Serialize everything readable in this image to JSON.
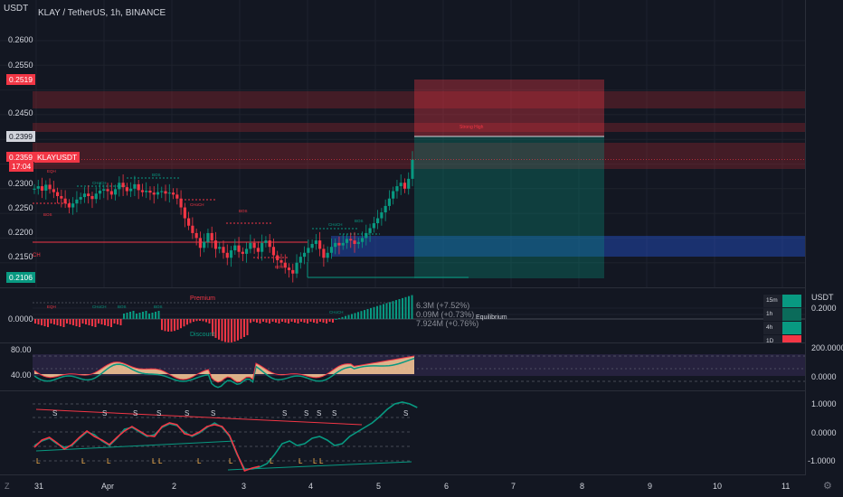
{
  "header": {
    "currency": "USDT",
    "symbol_title": "KLAY / TetherUS, 1h, BINANCE"
  },
  "price_axis": {
    "ticks": [
      "0.2600",
      "0.2550",
      "0.2450",
      "0.2300",
      "0.2250",
      "0.2200",
      "0.2150"
    ],
    "label_red_top": "0.2519",
    "label_white": "0.2399",
    "label_current": "0.2359",
    "label_countdown": "17:04",
    "label_symbol": "KLAYUSDT",
    "label_green": "0.2106"
  },
  "main_annotations": {
    "bos_labels": [
      "BOS",
      "BOS",
      "BOS",
      "BOS",
      "BOS",
      "BOS"
    ],
    "choch_labels": [
      "CHoCH",
      "CHoCH",
      "CHoCH"
    ],
    "eqh": "EQH",
    "strong_high": "Strong High",
    "left_edge": "CH"
  },
  "pane2": {
    "axis_label": "0.0000",
    "premium": "Premium",
    "discount": "Discount",
    "equilibrium": "Equilibrium",
    "eq_stats": [
      "6.3M (+7.52%)",
      "0.09M (+0.73%)",
      "7.924M (+0.76%)"
    ],
    "right_currency": "USDT",
    "right_value": "0.2000",
    "timeframes": [
      "15m",
      "1h",
      "4h",
      "1D"
    ],
    "small_labels": [
      "EQH",
      "CHoCH",
      "BOS",
      "BOS",
      "CHoCH"
    ]
  },
  "pane3": {
    "left_ticks": [
      "80.00",
      "40.00"
    ],
    "right_ticks": [
      "200.0000",
      "0.0000"
    ]
  },
  "pane4": {
    "right_ticks": [
      "1.0000",
      "0.0000",
      "-1.0000"
    ],
    "s_marks": [
      "S",
      "S",
      "S",
      "S",
      "S",
      "S",
      "S",
      "S",
      "S",
      "S",
      "S"
    ],
    "l_marks": [
      "L",
      "L",
      "L",
      "L",
      "L",
      "L",
      "L",
      "L",
      "L",
      "L",
      "L"
    ]
  },
  "time_axis": {
    "labels": [
      "31",
      "Apr",
      "2",
      "3",
      "4",
      "5",
      "6",
      "7",
      "8",
      "9",
      "10",
      "11"
    ]
  },
  "chart_data": {
    "type": "candlestick",
    "title": "KLAY / TetherUS, 1h, BINANCE",
    "ylabel": "USDT",
    "ylim": [
      0.2106,
      0.262
    ],
    "x_labels": [
      "31",
      "Apr",
      "2",
      "3",
      "4",
      "5"
    ],
    "close": [
      0.23,
      0.2305,
      0.2296,
      0.2308,
      0.2299,
      0.2293,
      0.2285,
      0.228,
      0.227,
      0.2262,
      0.227,
      0.2278,
      0.2283,
      0.229,
      0.2285,
      0.2279,
      0.229,
      0.2296,
      0.2299,
      0.2295,
      0.2288,
      0.2299,
      0.2312,
      0.2303,
      0.2295,
      0.23,
      0.2309,
      0.2297,
      0.2293,
      0.2296,
      0.2292,
      0.2288,
      0.2293,
      0.2295,
      0.229,
      0.2292,
      0.2288,
      0.228,
      0.2262,
      0.224,
      0.2225,
      0.221,
      0.22,
      0.218,
      0.2192,
      0.221,
      0.2195,
      0.2178,
      0.2182,
      0.217,
      0.216,
      0.2175,
      0.2185,
      0.2172,
      0.2168,
      0.2178,
      0.219,
      0.218,
      0.2172,
      0.219,
      0.2195,
      0.2182,
      0.2165,
      0.2155,
      0.215,
      0.214,
      0.2135,
      0.2128,
      0.215,
      0.2162,
      0.217,
      0.218,
      0.2188,
      0.2195,
      0.2178,
      0.216,
      0.217,
      0.2182,
      0.219,
      0.2185,
      0.219,
      0.2198,
      0.2195,
      0.2188,
      0.2192,
      0.22,
      0.221,
      0.222,
      0.223,
      0.224,
      0.2252,
      0.2265,
      0.228,
      0.2295,
      0.2305,
      0.2312,
      0.23,
      0.232,
      0.2359
    ]
  }
}
